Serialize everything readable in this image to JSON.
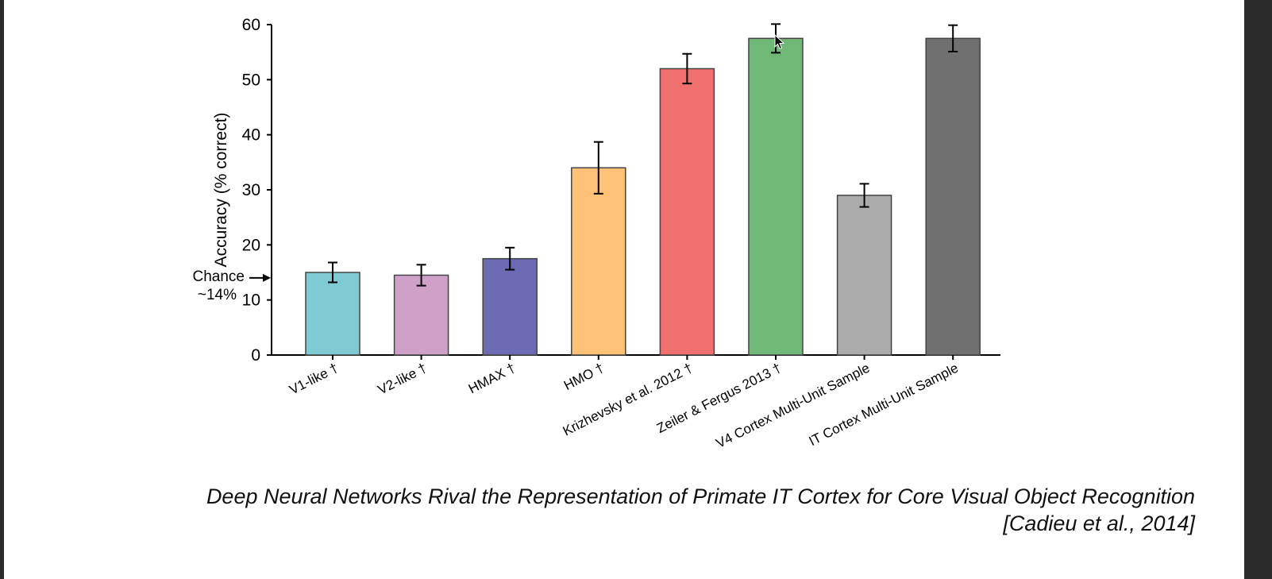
{
  "chart_data": {
    "type": "bar",
    "ylabel": "Accuracy (% correct)",
    "ylim": [
      0,
      60
    ],
    "yticks": [
      0,
      10,
      20,
      30,
      40,
      50,
      60
    ],
    "categories": [
      "V1-like †",
      "V2-like †",
      "HMAX †",
      "HMO †",
      "Krizhevsky et al. 2012 †",
      "Zeiler & Fergus 2013 †",
      "V4 Cortex Multi-Unit Sample",
      "IT Cortex Multi-Unit Sample"
    ],
    "values": [
      15,
      14.5,
      17.5,
      34,
      52,
      57.5,
      29,
      57.5
    ],
    "errors": [
      1.8,
      1.9,
      2.0,
      4.7,
      2.7,
      2.6,
      2.1,
      2.4
    ],
    "colors": [
      "#7ecbd3",
      "#cfa0c8",
      "#6b6ab3",
      "#fec178",
      "#f07070",
      "#70b877",
      "#ababab",
      "#707070"
    ],
    "chance": {
      "value": 14,
      "label_line1": "Chance",
      "label_line2": "~14%"
    },
    "grid": false,
    "legend": "none"
  },
  "caption": {
    "title": "Deep Neural Networks Rival the Representation of Primate IT Cortex for Core Visual Object Recognition",
    "citation": "[Cadieu et al., 2014]"
  }
}
